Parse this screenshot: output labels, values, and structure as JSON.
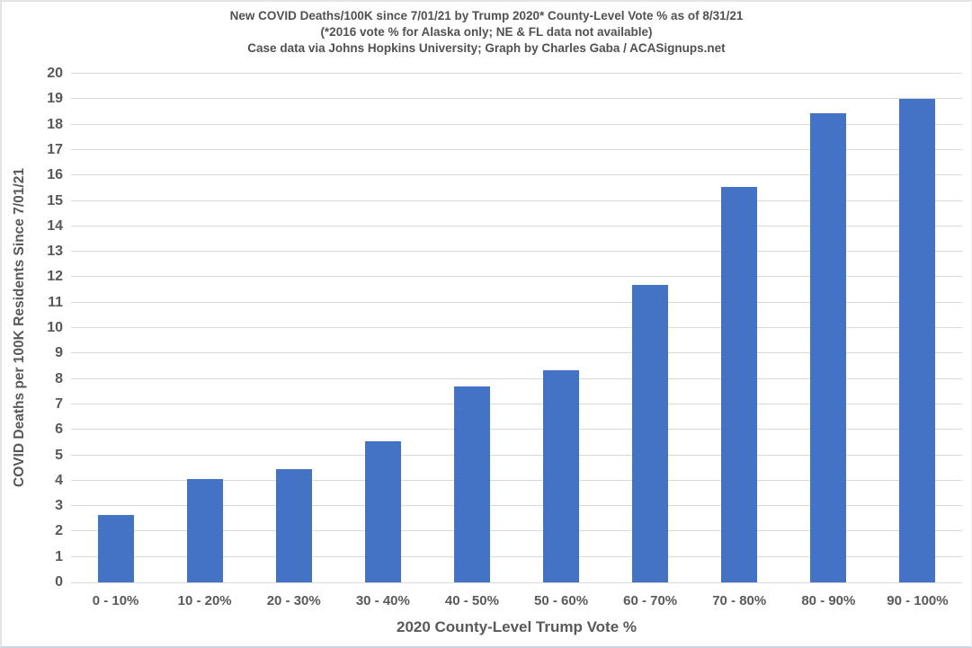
{
  "chart_data": {
    "type": "bar",
    "title": "New COVID Deaths/100K since 7/01/21 by Trump 2020* County-Level Vote % as of 8/31/21",
    "subtitle": "(*2016 vote % for Alaska only; NE & FL data not available)",
    "credit": "Case data via Johns Hopkins University; Graph by Charles Gaba / ACASignups.net",
    "categories": [
      "0 - 10%",
      "10 - 20%",
      "20 - 30%",
      "30 - 40%",
      "40 - 50%",
      "50 - 60%",
      "60 - 70%",
      "70 - 80%",
      "80 - 90%",
      "90 - 100%"
    ],
    "values": [
      2.65,
      4.05,
      4.45,
      5.55,
      7.7,
      8.35,
      11.7,
      15.55,
      18.45,
      19.0
    ],
    "xlabel": "2020 County-Level Trump Vote %",
    "ylabel": "COVID Deaths per 100K Residents Since 7/01/21",
    "ylim": [
      0,
      20
    ],
    "y_ticks": [
      0,
      1,
      2,
      3,
      4,
      5,
      6,
      7,
      8,
      9,
      10,
      11,
      12,
      13,
      14,
      15,
      16,
      17,
      18,
      19,
      20
    ],
    "grid": true,
    "legend_position": "none",
    "colors": {
      "bar": "#4472C4",
      "gridline": "#D9D9D9",
      "axis_line": "#D9D9D9",
      "tick_text": "#595959",
      "title_text": "#515151"
    }
  }
}
